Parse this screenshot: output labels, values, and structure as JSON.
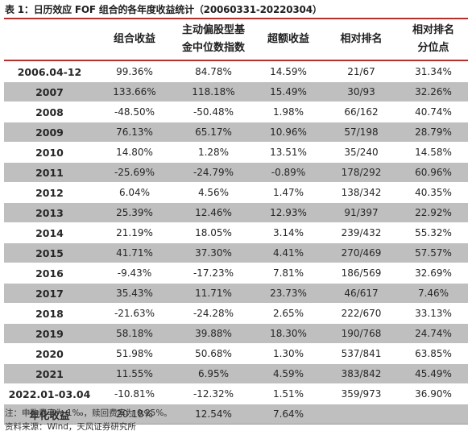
{
  "title": "表 1：日历效应 FOF 组合的各年度收益统计（20060331-20220304）",
  "headers": {
    "period": "",
    "portfolio_return_1": "组合收益",
    "portfolio_return_2": "",
    "fund_index_1": "主动偏股型基",
    "fund_index_2": "金中位数指数",
    "excess_1": "超额收益",
    "excess_2": "",
    "rank_1": "相对排名",
    "rank_2": "",
    "pct_1": "相对排名",
    "pct_2": "分位点"
  },
  "rows": [
    {
      "period": "2006.04-12",
      "portfolio": "99.36%",
      "fund_index": "84.78%",
      "excess": "14.59%",
      "rank": "21/67",
      "percentile": "31.34%"
    },
    {
      "period": "2007",
      "portfolio": "133.66%",
      "fund_index": "118.18%",
      "excess": "15.49%",
      "rank": "30/93",
      "percentile": "32.26%"
    },
    {
      "period": "2008",
      "portfolio": "-48.50%",
      "fund_index": "-50.48%",
      "excess": "1.98%",
      "rank": "66/162",
      "percentile": "40.74%"
    },
    {
      "period": "2009",
      "portfolio": "76.13%",
      "fund_index": "65.17%",
      "excess": "10.96%",
      "rank": "57/198",
      "percentile": "28.79%"
    },
    {
      "period": "2010",
      "portfolio": "14.80%",
      "fund_index": "1.28%",
      "excess": "13.51%",
      "rank": "35/240",
      "percentile": "14.58%"
    },
    {
      "period": "2011",
      "portfolio": "-25.69%",
      "fund_index": "-24.79%",
      "excess": "-0.89%",
      "rank": "178/292",
      "percentile": "60.96%"
    },
    {
      "period": "2012",
      "portfolio": "6.04%",
      "fund_index": "4.56%",
      "excess": "1.47%",
      "rank": "138/342",
      "percentile": "40.35%"
    },
    {
      "period": "2013",
      "portfolio": "25.39%",
      "fund_index": "12.46%",
      "excess": "12.93%",
      "rank": "91/397",
      "percentile": "22.92%"
    },
    {
      "period": "2014",
      "portfolio": "21.19%",
      "fund_index": "18.05%",
      "excess": "3.14%",
      "rank": "239/432",
      "percentile": "55.32%"
    },
    {
      "period": "2015",
      "portfolio": "41.71%",
      "fund_index": "37.30%",
      "excess": "4.41%",
      "rank": "270/469",
      "percentile": "57.57%"
    },
    {
      "period": "2016",
      "portfolio": "-9.43%",
      "fund_index": "-17.23%",
      "excess": "7.81%",
      "rank": "186/569",
      "percentile": "32.69%"
    },
    {
      "period": "2017",
      "portfolio": "35.43%",
      "fund_index": "11.71%",
      "excess": "23.73%",
      "rank": "46/617",
      "percentile": "7.46%"
    },
    {
      "period": "2018",
      "portfolio": "-21.63%",
      "fund_index": "-24.28%",
      "excess": "2.65%",
      "rank": "222/670",
      "percentile": "33.13%"
    },
    {
      "period": "2019",
      "portfolio": "58.18%",
      "fund_index": "39.88%",
      "excess": "18.30%",
      "rank": "190/768",
      "percentile": "24.74%"
    },
    {
      "period": "2020",
      "portfolio": "51.98%",
      "fund_index": "50.68%",
      "excess": "1.30%",
      "rank": "537/841",
      "percentile": "63.85%"
    },
    {
      "period": "2021",
      "portfolio": "11.55%",
      "fund_index": "6.95%",
      "excess": "4.59%",
      "rank": "383/842",
      "percentile": "45.49%"
    },
    {
      "period": "2022.01-03.04",
      "portfolio": "-10.81%",
      "fund_index": "-12.32%",
      "excess": "1.51%",
      "rank": "359/973",
      "percentile": "36.90%"
    },
    {
      "period": "年化收益",
      "portfolio": "20.18%",
      "fund_index": "12.54%",
      "excess": "7.64%",
      "rank": "",
      "percentile": ""
    }
  ],
  "notes": {
    "fee": "注：申购费率为 1‰，赎回费率为 0.25%。",
    "source": "资料来源：Wind，天风证券研究所"
  },
  "colors": {
    "rule": "#b3302b",
    "shade": "#bfbfbf"
  }
}
